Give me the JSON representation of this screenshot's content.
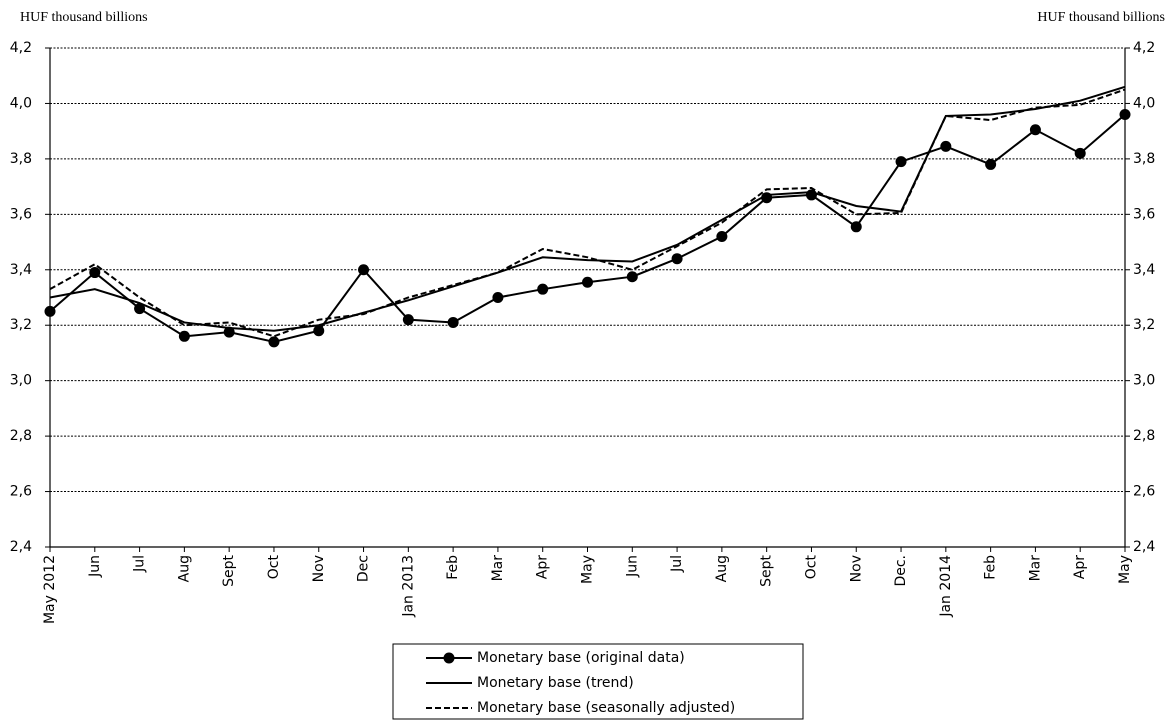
{
  "chart_data": {
    "type": "line",
    "y_label": "HUF thousand billions",
    "y2_label": "HUF thousand billions",
    "categories": [
      "May 2012",
      "Jun",
      "Jul",
      "Aug",
      "Sept",
      "Oct",
      "Nov",
      "Dec",
      "Jan 2013",
      "Feb",
      "Mar",
      "Apr",
      "May",
      "Jun",
      "Jul",
      "Aug",
      "Sept",
      "Oct",
      "Nov",
      "Dec.",
      "Jan 2014",
      "Feb",
      "Mar",
      "Apr",
      "May"
    ],
    "series": [
      {
        "name": "Monetary base (original data)",
        "color": "#000000",
        "style": "solid",
        "marker": "circle",
        "values": [
          3.25,
          3.39,
          3.26,
          3.16,
          3.175,
          3.14,
          3.18,
          3.4,
          3.22,
          3.21,
          3.3,
          3.33,
          3.355,
          3.375,
          3.44,
          3.52,
          3.66,
          3.67,
          3.555,
          3.79,
          3.845,
          3.78,
          3.905,
          3.82,
          3.96
        ]
      },
      {
        "name": "Monetary base (trend)",
        "color": "#000000",
        "style": "solid",
        "values": [
          3.3,
          3.33,
          3.28,
          3.21,
          3.19,
          3.18,
          3.2,
          3.245,
          3.29,
          3.34,
          3.39,
          3.445,
          3.435,
          3.43,
          3.49,
          3.58,
          3.67,
          3.68,
          3.63,
          3.61,
          3.955,
          3.96,
          3.98,
          4.01,
          4.06
        ]
      },
      {
        "name": "Monetary base (seasonally adjusted)",
        "color": "#000000",
        "style": "dashed",
        "values": [
          3.33,
          3.42,
          3.3,
          3.2,
          3.21,
          3.16,
          3.22,
          3.24,
          3.3,
          3.345,
          3.39,
          3.475,
          3.445,
          3.4,
          3.485,
          3.57,
          3.69,
          3.695,
          3.6,
          3.605,
          3.955,
          3.94,
          3.985,
          3.995,
          4.05
        ]
      }
    ],
    "ylim": [
      2.4,
      4.2
    ],
    "yticks": [
      {
        "value": 2.4,
        "label": "2,4"
      },
      {
        "value": 2.6,
        "label": "2,6"
      },
      {
        "value": 2.8,
        "label": "2,8"
      },
      {
        "value": 3.0,
        "label": "3,0"
      },
      {
        "value": 3.2,
        "label": "3,2"
      },
      {
        "value": 3.4,
        "label": "3,4"
      },
      {
        "value": 3.6,
        "label": "3,6"
      },
      {
        "value": 3.8,
        "label": "3,8"
      },
      {
        "value": 4.0,
        "label": "4,0"
      },
      {
        "value": 4.2,
        "label": "4,2"
      }
    ],
    "y2lim": [
      2.4,
      4.2
    ],
    "y2ticks": [
      {
        "value": 2.4,
        "label": "2,4"
      },
      {
        "value": 2.6,
        "label": "2,6"
      },
      {
        "value": 2.8,
        "label": "2,8"
      },
      {
        "value": 3.0,
        "label": "3,0"
      },
      {
        "value": 3.2,
        "label": "3,2"
      },
      {
        "value": 3.4,
        "label": "3,4"
      },
      {
        "value": 3.6,
        "label": "3,6"
      },
      {
        "value": 3.8,
        "label": "3,8"
      },
      {
        "value": 4.0,
        "label": "4,0"
      },
      {
        "value": 4.2,
        "label": "4,2"
      }
    ],
    "grid": true,
    "legend": "bottom"
  }
}
